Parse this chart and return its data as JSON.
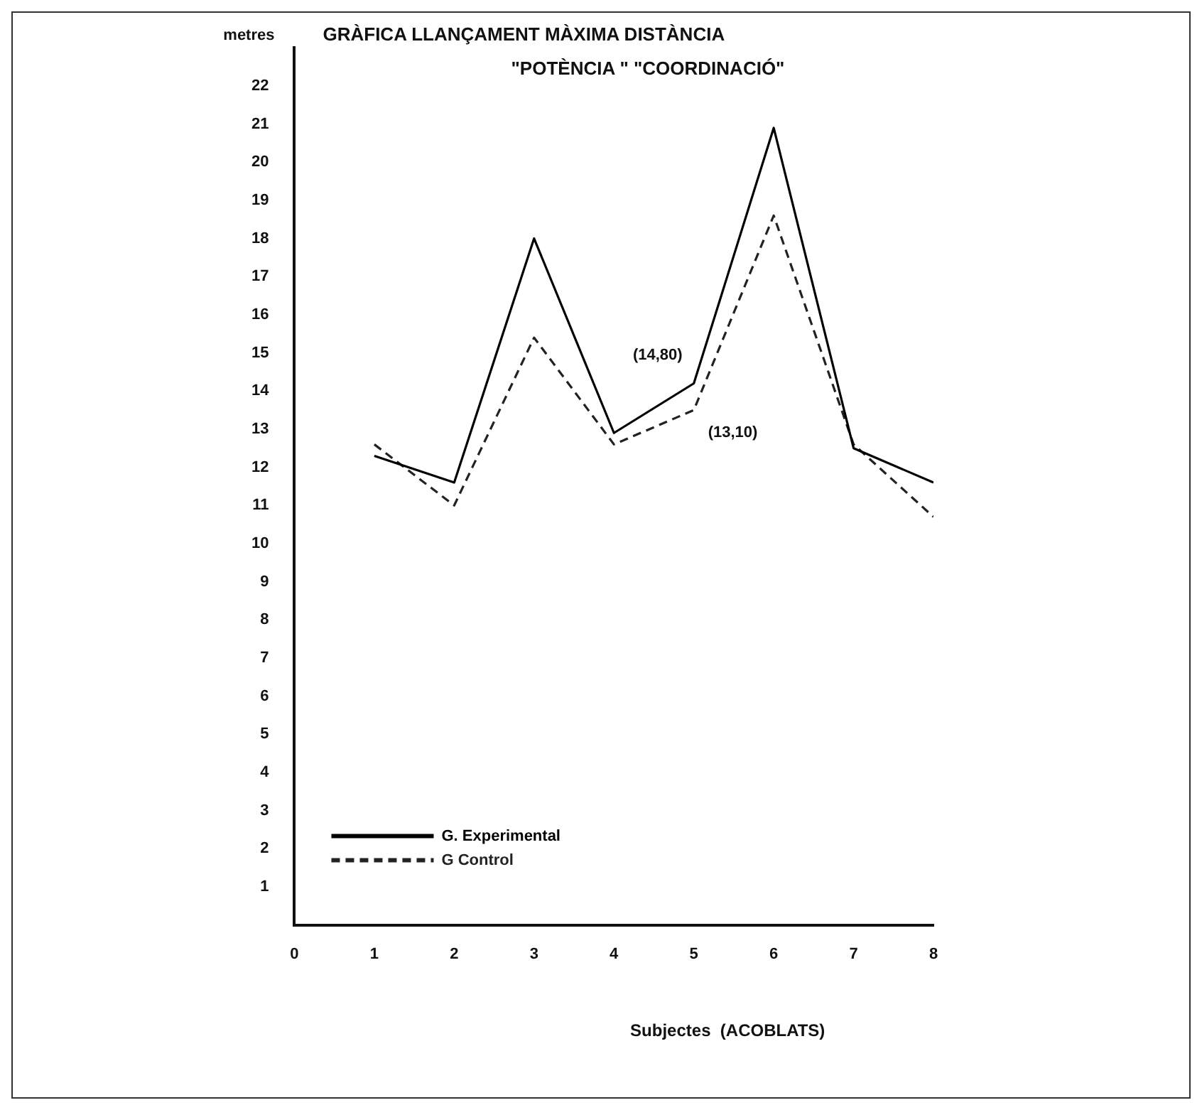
{
  "chart_data": {
    "type": "line",
    "title": "GRÀFICA LLANÇAMENT MÀXIMA DISTÀNCIA",
    "subtitle": "\"POTÈNCIA \" \"COORDINACIÓ\"",
    "xlabel": "Subjectes  (ACOBLATS)",
    "ylabel": "metres",
    "x": [
      1,
      2,
      3,
      4,
      5,
      6,
      7,
      8
    ],
    "series": [
      {
        "name": "G. Experimental",
        "color": "#000000",
        "line_style": "solid",
        "values": [
          12.3,
          11.6,
          18.0,
          12.9,
          14.2,
          20.9,
          12.5,
          11.6
        ]
      },
      {
        "name": "G Control",
        "color": "#222222",
        "line_style": "dashed",
        "values": [
          12.6,
          11.0,
          15.4,
          12.6,
          13.5,
          18.6,
          12.6,
          10.7
        ]
      }
    ],
    "xlim": [
      0,
      8
    ],
    "xticks": [
      0,
      1,
      2,
      3,
      4,
      5,
      6,
      7,
      8
    ],
    "ylim": [
      0,
      23
    ],
    "yticks": [
      1,
      2,
      3,
      4,
      5,
      6,
      7,
      8,
      9,
      10,
      11,
      12,
      13,
      14,
      15,
      16,
      17,
      18,
      19,
      20,
      21,
      22
    ],
    "grid": false,
    "legend": "bottom left",
    "marker": "none",
    "annotations": [
      {
        "text": "(14,80)",
        "x": 5,
        "y": 14.2
      },
      {
        "text": "(13,10)",
        "x": 5,
        "y": 13.5
      }
    ]
  }
}
